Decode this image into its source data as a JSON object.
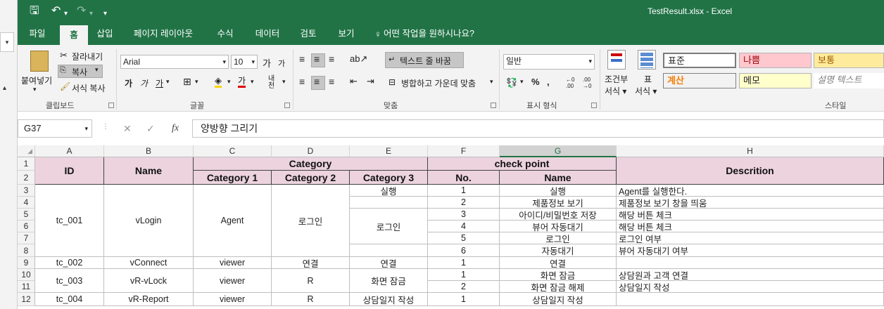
{
  "window": {
    "title": "TestResult.xlsx  -  Excel"
  },
  "quick_access": {
    "save": "🖫",
    "undo": "↶",
    "redo": "↷",
    "more": "▾"
  },
  "tabs": [
    {
      "label": "파일"
    },
    {
      "label": "홈"
    },
    {
      "label": "삽입"
    },
    {
      "label": "페이지 레이아웃"
    },
    {
      "label": "수식"
    },
    {
      "label": "데이터"
    },
    {
      "label": "검토"
    },
    {
      "label": "보기"
    },
    {
      "label": "어떤 작업을 원하시나요?"
    }
  ],
  "ribbon": {
    "clipboard": {
      "paste": "붙여넣기",
      "cut": "잘라내기",
      "copy": "복사",
      "format_painter": "서식 복사",
      "group": "클립보드"
    },
    "font": {
      "name": "Arial",
      "size": "10",
      "grow": "가",
      "shrink": "가",
      "bold": "가",
      "italic": "가",
      "underline": "가",
      "font_color": "가",
      "phonetic": "내천",
      "group": "글꼴"
    },
    "alignment": {
      "wrap": "텍스트 줄 바꿈",
      "merge": "병합하고 가운데 맞춤",
      "group": "맞춤"
    },
    "number": {
      "format": "일반",
      "percent": "%",
      "comma": ",",
      "group": "표시 형식"
    },
    "styles": {
      "conditional": "조건부",
      "conditional2": "서식",
      "table": "표",
      "table2": "서식",
      "normal": "표준",
      "bad": "나쁨",
      "good": "보통",
      "calc": "계산",
      "memo": "메모",
      "explain": "설명 텍스트",
      "group": "스타일"
    }
  },
  "formula_bar": {
    "name_box": "G37",
    "content": "양방향 그리기",
    "fx": "fx"
  },
  "left_strip": {
    "top": "▾",
    "arrow": "▴"
  },
  "columns": [
    "A",
    "B",
    "C",
    "D",
    "E",
    "F",
    "G",
    "H"
  ],
  "rows": [
    "1",
    "2",
    "3",
    "4",
    "5",
    "6",
    "7",
    "8",
    "9",
    "10",
    "11",
    "12"
  ],
  "headers": {
    "id": "ID",
    "name": "Name",
    "category": "Category",
    "cat1": "Category 1",
    "cat2": "Category 2",
    "cat3": "Category 3",
    "checkpoint": "check point",
    "no": "No.",
    "cp_name": "Name",
    "desc": "Descrition"
  },
  "cells": {
    "a_tc001": "tc_001",
    "b_vlogin": "vLogin",
    "c_agent": "Agent",
    "d_login": "로그인",
    "e_run": "실행",
    "e_login": "로그인",
    "f3": "1",
    "g3": "실행",
    "h3": "Agent를 실행한다.",
    "f4": "2",
    "g4": "제품정보 보기",
    "h4": "제품정보 보기 창을 띄움",
    "f5": "3",
    "g5": "아이디/비밀번호 저장",
    "h5": "해당 버튼 체크",
    "f6": "4",
    "g6": "뷰어 자동대기",
    "h6": "해당 버튼 체크",
    "f7": "5",
    "g7": "로그인",
    "h7": "로그인 여부",
    "f8": "6",
    "g8": "자동대기",
    "h8": "뷰어 자동대기 여부",
    "a9": "tc_002",
    "b9": "vConnect",
    "c9": "viewer",
    "d9": "연결",
    "e9": "연결",
    "f9": "1",
    "g9": "연결",
    "a10": "tc_003",
    "b10": "vR-vLock",
    "c10": "viewer",
    "d10": "R",
    "e10": "화면 잠금",
    "f10": "1",
    "g10": "화면 잠금",
    "h10": "상담원과 고객 연결",
    "f11": "2",
    "g11": "화면 잠금 해제",
    "h11": "상담일지 작성",
    "a12": "tc_004",
    "b12": "vR-Report",
    "c12": "viewer",
    "d12": "R",
    "e12": "상담일지 작성",
    "f12": "1",
    "g12": "상담일지 작성"
  },
  "colors": {
    "excel_green": "#217346",
    "header_fill": "#ecd3de"
  }
}
